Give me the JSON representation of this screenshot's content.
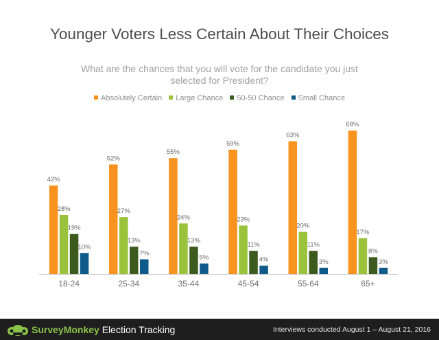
{
  "title": "Younger Voters Less Certain About Their Choices",
  "subtitle": "What are the chances that you will vote for the candidate you just selected for President?",
  "footer": {
    "brand_name": "SurveyMonkey",
    "brand_suffix": "Election Tracking",
    "note": "Interviews conducted August 1 – August 21, 2016"
  },
  "chart_data": {
    "type": "bar",
    "title": "Younger Voters Less Certain About Their Choices",
    "subtitle": "What are the chances that you will vote for the candidate you just selected for President?",
    "xlabel": "",
    "ylabel": "",
    "ylim": [
      0,
      70
    ],
    "grid": false,
    "legend_position": "top",
    "categories": [
      "18-24",
      "25-34",
      "35-44",
      "45-54",
      "55-64",
      "65+"
    ],
    "series": [
      {
        "name": "Absolutely Certain",
        "color": "#f7931e",
        "values": [
          42,
          52,
          55,
          59,
          63,
          68
        ],
        "labels": [
          "42%",
          "52%",
          "55%",
          "59%",
          "63%",
          "68%"
        ]
      },
      {
        "name": "Large Chance",
        "color": "#9ac33b",
        "values": [
          28,
          27,
          24,
          23,
          20,
          17
        ],
        "labels": [
          "28%",
          "27%",
          "24%",
          "23%",
          "20%",
          "17%"
        ]
      },
      {
        "name": "50-50 Chance",
        "color": "#3d5b1f",
        "values": [
          19,
          13,
          13,
          11,
          11,
          8
        ],
        "labels": [
          "19%",
          "13%",
          "13%",
          "11%",
          "11%",
          "8%"
        ]
      },
      {
        "name": "Small Chance",
        "color": "#0e5a8a",
        "values": [
          10,
          7,
          5,
          4,
          3,
          3
        ],
        "labels": [
          "10%",
          "7%",
          "5%",
          "4%",
          "3%",
          "3%"
        ]
      }
    ]
  }
}
